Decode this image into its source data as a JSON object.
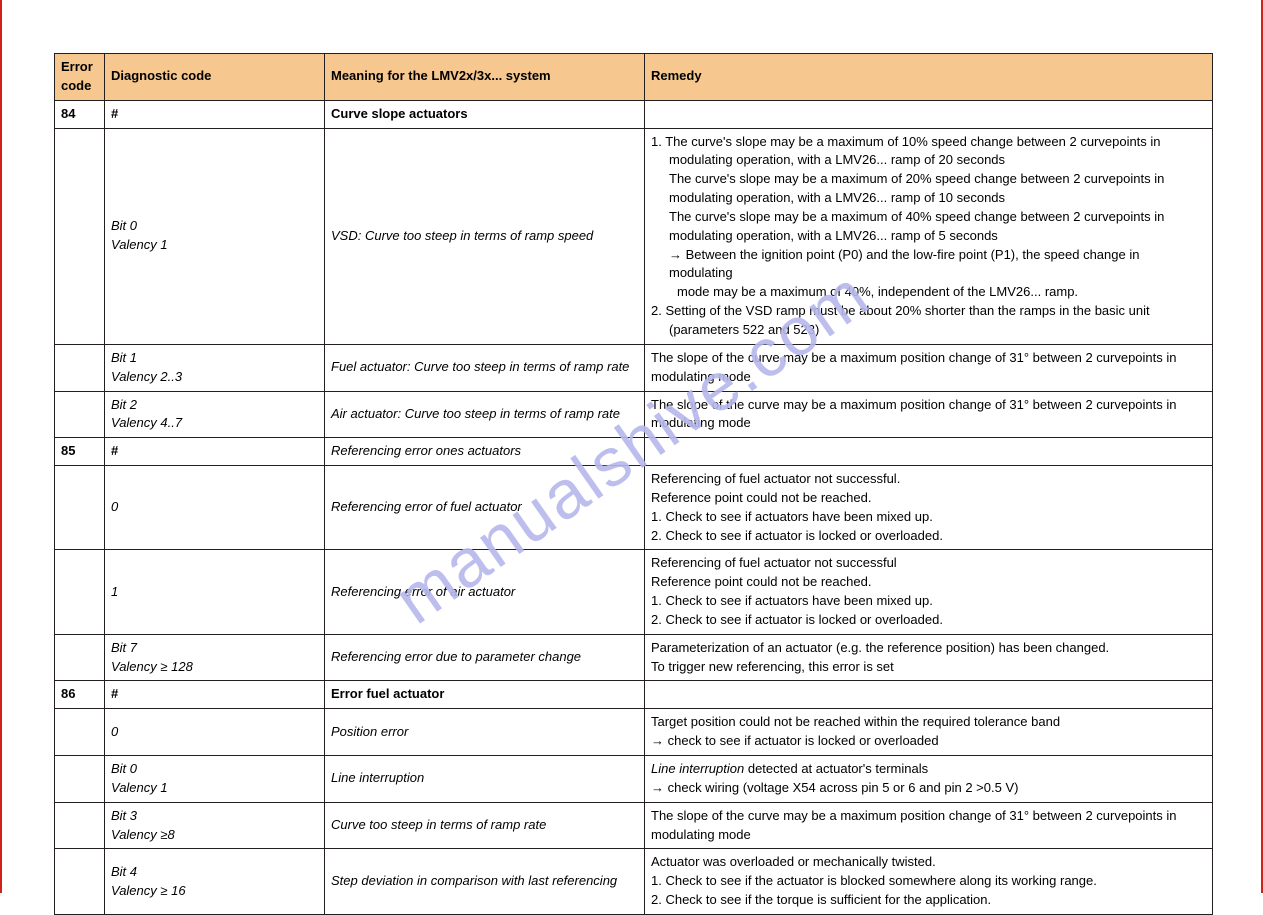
{
  "watermark_text": "manualshive.com",
  "columns": {
    "code": "Error code",
    "diag": "Diagnostic code",
    "meaning": "Meaning for the LMV2x/3x... system",
    "remedy": "Remedy"
  },
  "rows": [
    {
      "code": "84",
      "code_bold": true,
      "diag": [
        {
          "text": "#",
          "bold": true
        }
      ],
      "meaning": [
        {
          "text": "Curve slope actuators",
          "bold": true
        }
      ],
      "remedy": []
    },
    {
      "code": "",
      "diag": [
        {
          "text": "Bit 0",
          "italic": true
        },
        {
          "text": "Valency 1",
          "italic": true
        }
      ],
      "meaning": [
        {
          "text": "VSD: Curve too steep in terms of ramp speed",
          "italic": true
        }
      ],
      "remedy": [
        {
          "text": "1. The curve's slope may be a maximum of 10% speed change between 2 curvepoints in"
        },
        {
          "text": "modulating operation, with a LMV26... ramp of 20 seconds",
          "indent": 1
        },
        {
          "text": "The curve's slope may be a maximum of 20% speed change between 2 curvepoints in",
          "indent": 1
        },
        {
          "text": "modulating operation, with a LMV26... ramp of 10 seconds",
          "indent": 1
        },
        {
          "text": "The curve's slope may be a maximum of 40% speed change between 2 curvepoints in",
          "indent": 1
        },
        {
          "text": "modulating operation, with a LMV26... ramp of 5 seconds",
          "indent": 1
        },
        {
          "text": "→ Between the ignition point (P0) and the low-fire point (P1), the speed change in modulating",
          "indent": 1
        },
        {
          "text": "mode may be a maximum of 40%, independent of the LMV26... ramp.",
          "indent": 2
        },
        {
          "text": "2. Setting of the VSD ramp must be about 20% shorter than the ramps in the basic unit"
        },
        {
          "text": "(parameters 522 and 523)",
          "indent": 1
        }
      ]
    },
    {
      "code": "",
      "diag": [
        {
          "text": "Bit 1",
          "italic": true
        },
        {
          "text": "Valency 2..3",
          "italic": true
        }
      ],
      "meaning": [
        {
          "text": "Fuel actuator: Curve too steep in terms of ramp rate",
          "italic": true
        }
      ],
      "remedy": [
        {
          "text": "The slope of the curve may be a maximum position change of 31° between 2 curvepoints in"
        },
        {
          "text": "modulating mode"
        }
      ]
    },
    {
      "code": "",
      "diag": [
        {
          "text": "Bit 2",
          "italic": true
        },
        {
          "text": "Valency 4..7",
          "italic": true
        }
      ],
      "meaning": [
        {
          "text": "Air actuator: Curve too steep in terms of ramp rate",
          "italic": true
        }
      ],
      "remedy": [
        {
          "text": "The slope of the curve may be a maximum position change of 31° between 2 curvepoints in"
        },
        {
          "text": "modulating mode"
        }
      ]
    },
    {
      "code": "85",
      "code_bold": true,
      "diag": [
        {
          "text": "#",
          "bold": true
        }
      ],
      "meaning": [
        {
          "text": "Referencing error ones actuators",
          "italic": true
        }
      ],
      "remedy": []
    },
    {
      "code": "",
      "diag": [
        {
          "text": "0",
          "italic": true
        }
      ],
      "meaning": [
        {
          "text": "Referencing error of fuel actuator",
          "italic": true
        }
      ],
      "remedy": [
        {
          "text": "Referencing of fuel actuator not successful."
        },
        {
          "text": "Reference point could not be reached."
        },
        {
          "text": "1. Check to see if actuators have been mixed up."
        },
        {
          "text": "2. Check to see if actuator is locked or overloaded."
        }
      ]
    },
    {
      "code": "",
      "diag": [
        {
          "text": "1",
          "italic": true
        }
      ],
      "meaning": [
        {
          "text": "Referencing error of air actuator",
          "italic": true
        }
      ],
      "remedy": [
        {
          "text": "Referencing of fuel actuator not successful"
        },
        {
          "text": " Reference point could not be reached."
        },
        {
          "text": "1. Check to see if actuators have been mixed up."
        },
        {
          "text": "2. Check to see if actuator is locked or overloaded."
        }
      ]
    },
    {
      "code": "",
      "diag": [
        {
          "text": "Bit 7",
          "italic": true
        },
        {
          "text": "Valency ≥ 128",
          "italic": true
        }
      ],
      "meaning": [
        {
          "text": "Referencing error due to parameter change",
          "italic": true
        }
      ],
      "remedy": [
        {
          "text": "Parameterization of an actuator (e.g. the reference position) has been changed."
        },
        {
          "text": "To trigger new referencing, this error is set"
        }
      ]
    },
    {
      "code": "86",
      "code_bold": true,
      "diag": [
        {
          "text": "#",
          "bold": true
        }
      ],
      "meaning": [
        {
          "text": "Error fuel actuator",
          "bold": true
        }
      ],
      "remedy": []
    },
    {
      "code": "",
      "diag": [
        {
          "text": "0",
          "italic": true
        }
      ],
      "meaning": [
        {
          "text": "Position error",
          "italic": true
        }
      ],
      "remedy": [
        {
          "text": "Target position could not be reached within the required tolerance band"
        },
        {
          "text": "→ check to see if actuator is locked or overloaded"
        }
      ]
    },
    {
      "code": "",
      "diag": [
        {
          "text": "Bit 0",
          "italic": true
        },
        {
          "text": "Valency 1",
          "italic": true
        }
      ],
      "meaning": [
        {
          "text": "Line interruption",
          "italic": true
        }
      ],
      "remedy": [
        {
          "text_html": "<i>Line interruption</i> detected at actuator's terminals"
        },
        {
          "text": "→ check wiring (voltage X54 across pin 5 or 6 and pin 2 >0.5 V)"
        }
      ]
    },
    {
      "code": "",
      "diag": [
        {
          "text": "Bit 3",
          "italic": true
        },
        {
          "text": "Valency ≥8",
          "italic": true
        }
      ],
      "meaning": [
        {
          "text": "Curve too steep in terms of ramp rate",
          "italic": true
        }
      ],
      "remedy": [
        {
          "text": "The slope of the curve may be a maximum position change of 31° between 2 curvepoints in"
        },
        {
          "text": "modulating mode"
        }
      ]
    },
    {
      "code": "",
      "diag": [
        {
          "text": "Bit 4",
          "italic": true
        },
        {
          "text": "Valency ≥ 16",
          "italic": true
        }
      ],
      "meaning": [
        {
          "text": "Step deviation in comparison with last referencing",
          "italic": true
        }
      ],
      "remedy": [
        {
          "text": "Actuator was overloaded or mechanically twisted."
        },
        {
          "text": "1. Check to see if the actuator is blocked somewhere along its working range."
        },
        {
          "text": "2. Check to see if the torque is sufficient for the application."
        }
      ]
    }
  ]
}
